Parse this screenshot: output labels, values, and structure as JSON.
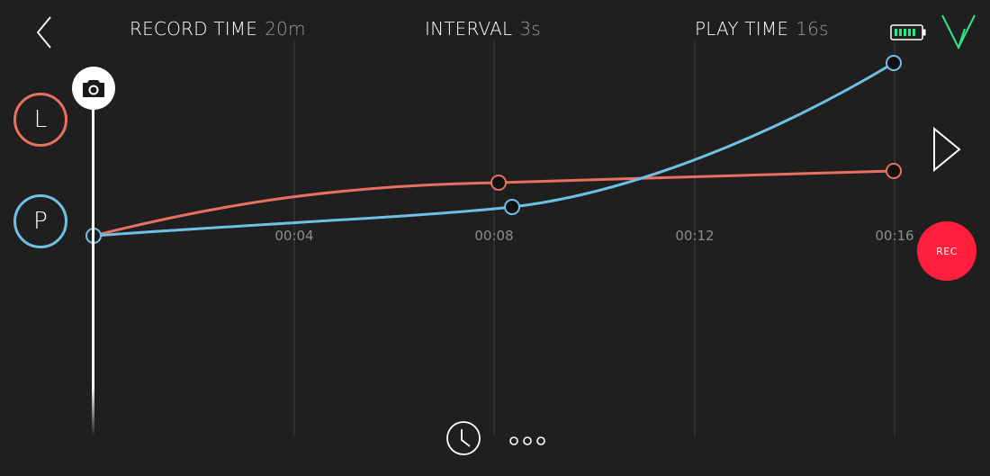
{
  "header": {
    "record_time_label": "RECORD TIME",
    "record_time_value": "20m",
    "interval_label": "INTERVAL",
    "interval_value": "3s",
    "play_time_label": "PLAY TIME",
    "play_time_value": "16s"
  },
  "icons": {
    "back": "chevron-left-icon",
    "battery": "battery-icon",
    "logo": "logo-icon",
    "camera": "camera-icon",
    "play": "play-icon",
    "clock": "clock-icon",
    "more": "more-icon"
  },
  "tracks": [
    {
      "label": "L",
      "color": "#e8705f"
    },
    {
      "label": "P",
      "color": "#6ec1e4"
    }
  ],
  "timeline": {
    "ticks": [
      "00:04",
      "00:08",
      "00:12",
      "00:16"
    ]
  },
  "rec_label": "REC",
  "colors": {
    "background": "#1f1f1f",
    "rec": "#ff1f3d",
    "battery": "#2ee68a",
    "logo": "#2ee68a"
  }
}
